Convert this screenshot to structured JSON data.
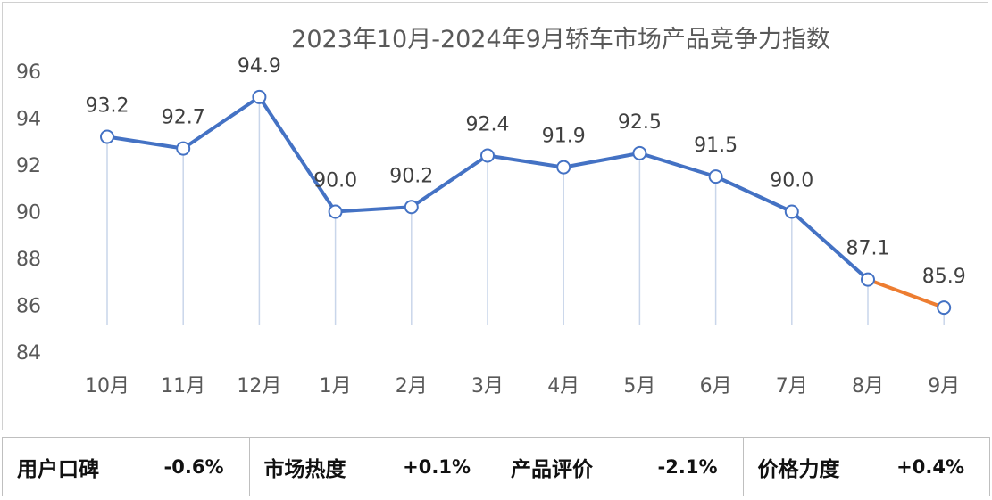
{
  "chart_data": {
    "type": "line",
    "title": "2023年10月-2024年9月轿车市场产品竞争力指数",
    "categories": [
      "10月",
      "11月",
      "12月",
      "1月",
      "2月",
      "3月",
      "4月",
      "5月",
      "6月",
      "7月",
      "8月",
      "9月"
    ],
    "series": [
      {
        "values": [
          93.2,
          92.7,
          94.9,
          90.0,
          90.2,
          92.4,
          91.9,
          92.5,
          91.5,
          90.0,
          87.1,
          85.9
        ],
        "data_labels": [
          "93.2",
          "92.7",
          "94.9",
          "90.0",
          "90.2",
          "92.4",
          "91.9",
          "92.5",
          "91.5",
          "90.0",
          "87.1",
          "85.9"
        ]
      }
    ],
    "ylim": [
      84,
      96
    ],
    "yticks": [
      84,
      86,
      88,
      90,
      92,
      94,
      96
    ],
    "grid": false,
    "colors": {
      "line": "#4472C4",
      "last_segment": "#ED7D31",
      "drop_line": "#C9D6EA"
    }
  },
  "metrics": [
    {
      "label": "用户口碑",
      "value": "-0.6%"
    },
    {
      "label": "市场热度",
      "value": "+0.1%"
    },
    {
      "label": "产品评价",
      "value": "-2.1%"
    },
    {
      "label": "价格力度",
      "value": "+0.4%"
    }
  ]
}
